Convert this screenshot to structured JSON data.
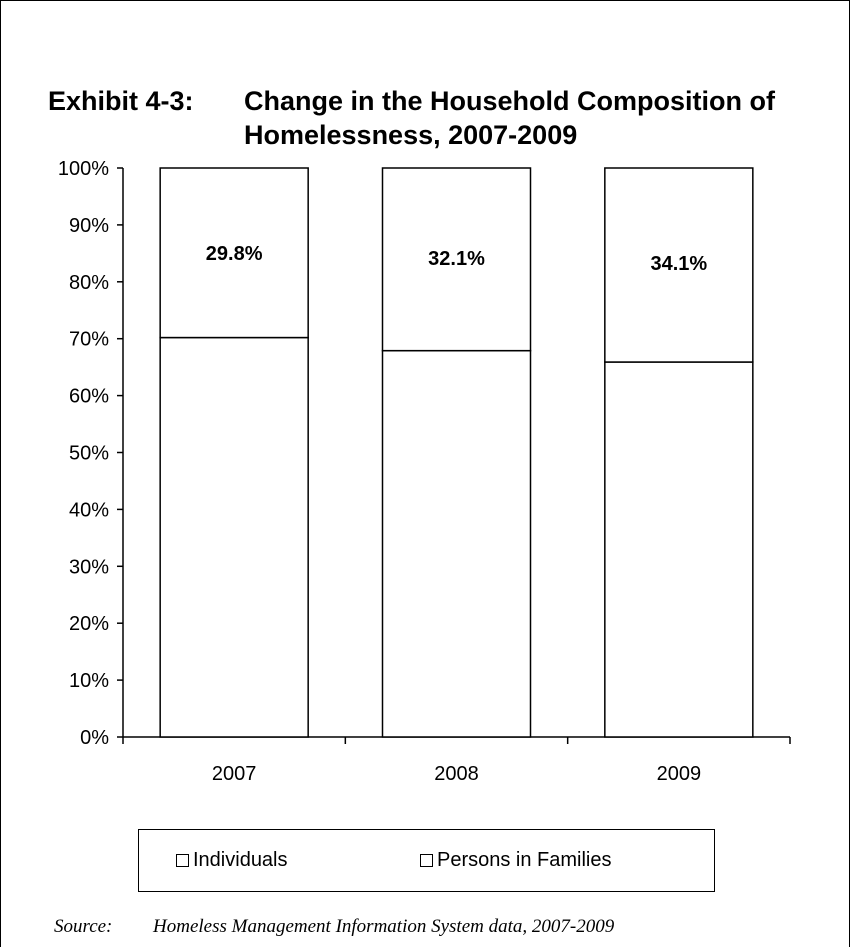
{
  "title": {
    "lead": "Exhibit 4-3:",
    "text": "Change in the Household Composition of Homelessness, 2007-2009"
  },
  "chart_data": {
    "type": "bar",
    "stacked": true,
    "categories": [
      "2007",
      "2008",
      "2009"
    ],
    "series": [
      {
        "name": "Individuals",
        "values": [
          70.2,
          67.9,
          65.9
        ],
        "color": "#ffffff"
      },
      {
        "name": "Persons in Families",
        "values": [
          29.8,
          32.1,
          34.1
        ],
        "color": "#ffffff"
      }
    ],
    "data_labels": [
      "29.8%",
      "32.1%",
      "34.1%"
    ],
    "ylim": [
      0,
      100
    ],
    "yticks": [
      "0%",
      "10%",
      "20%",
      "30%",
      "40%",
      "50%",
      "60%",
      "70%",
      "80%",
      "90%",
      "100%"
    ],
    "xlabel": "",
    "ylabel": "",
    "grid": false,
    "legend_position": "bottom"
  },
  "source": {
    "label": "Source:",
    "text": "Homeless Management Information System data, 2007-2009"
  }
}
